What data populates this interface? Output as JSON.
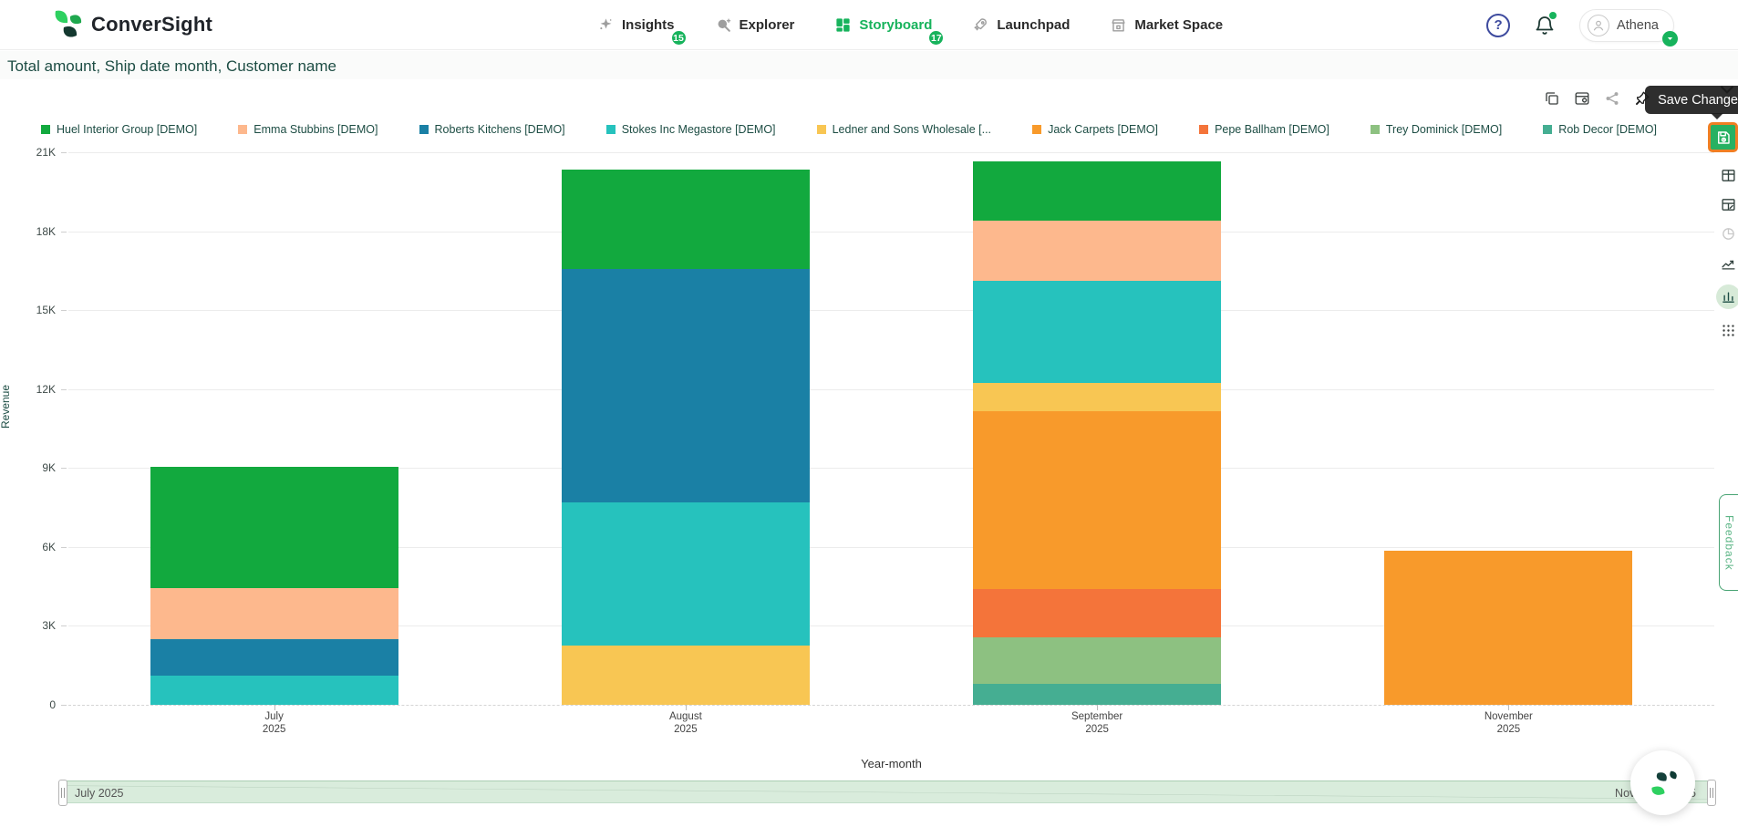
{
  "nav": {
    "brand": "ConverSight",
    "items": [
      {
        "label": "Insights",
        "badge": "15",
        "active": false
      },
      {
        "label": "Explorer",
        "badge": "",
        "active": false
      },
      {
        "label": "Storyboard",
        "badge": "17",
        "active": true
      },
      {
        "label": "Launchpad",
        "badge": "",
        "active": false
      },
      {
        "label": "Market Space",
        "badge": "",
        "active": false
      }
    ],
    "user": "Athena"
  },
  "page": {
    "title": "Total amount, Ship date month, Customer name"
  },
  "toolbar": {
    "save_tooltip": "Save Change"
  },
  "slider": {
    "start_label": "July 2025",
    "end_label": "November 2025"
  },
  "feedback": {
    "label": "Feedback"
  },
  "chart_data": {
    "type": "bar",
    "stacked": true,
    "title": "Total amount, Ship date month, Customer name",
    "xlabel": "Year-month",
    "ylabel": "Revenue",
    "ylim": [
      0,
      21000
    ],
    "yticks": [
      {
        "label": "0",
        "value": 0
      },
      {
        "label": "3K",
        "value": 3000
      },
      {
        "label": "6K",
        "value": 6000
      },
      {
        "label": "9K",
        "value": 9000
      },
      {
        "label": "12K",
        "value": 12000
      },
      {
        "label": "15K",
        "value": 15000
      },
      {
        "label": "18K",
        "value": 18000
      },
      {
        "label": "21K",
        "value": 21000
      }
    ],
    "categories": [
      {
        "line1": "July",
        "line2": "2025"
      },
      {
        "line1": "August",
        "line2": "2025"
      },
      {
        "line1": "September",
        "line2": "2025"
      },
      {
        "line1": "November",
        "line2": "2025"
      }
    ],
    "series": [
      {
        "name": "Huel Interior Group [DEMO]",
        "color": "#12a93e",
        "values": [
          4600,
          3800,
          2250,
          0
        ]
      },
      {
        "name": "Emma Stubbins [DEMO]",
        "color": "#fdb88d",
        "values": [
          1950,
          0,
          2300,
          0
        ]
      },
      {
        "name": "Roberts Kitchens [DEMO]",
        "color": "#1a80a5",
        "values": [
          1400,
          8850,
          0,
          0
        ]
      },
      {
        "name": "Stokes Inc Megastore [DEMO]",
        "color": "#26c2bd",
        "values": [
          1100,
          5450,
          3850,
          0
        ]
      },
      {
        "name": "Ledner and Sons Wholesale [...",
        "color": "#f8c653",
        "values": [
          0,
          2250,
          1100,
          0
        ]
      },
      {
        "name": "Jack Carpets [DEMO]",
        "color": "#f89a2b",
        "values": [
          0,
          0,
          6750,
          5850
        ]
      },
      {
        "name": "Pepe Ballham [DEMO]",
        "color": "#f4743a",
        "values": [
          0,
          0,
          1850,
          0
        ]
      },
      {
        "name": "Trey Dominick [DEMO]",
        "color": "#8dc181",
        "values": [
          0,
          0,
          1750,
          0
        ]
      },
      {
        "name": "Rob Decor [DEMO]",
        "color": "#45ae92",
        "values": [
          0,
          0,
          800,
          0
        ]
      }
    ],
    "legend_position": "top",
    "grid": true
  }
}
